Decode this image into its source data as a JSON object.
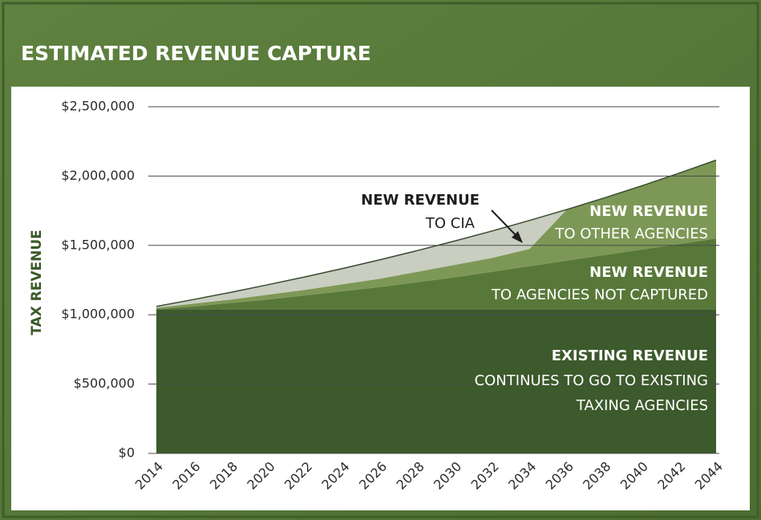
{
  "chart_data": {
    "type": "stacked-area",
    "title": "ESTIMATED REVENUE CAPTURE",
    "ylabel": "TAX REVENUE",
    "x": [
      2014,
      2016,
      2018,
      2020,
      2022,
      2024,
      2026,
      2028,
      2030,
      2032,
      2034,
      2036,
      2038,
      2040,
      2042,
      2044
    ],
    "xlim": [
      2014,
      2044
    ],
    "xticks": [
      2014,
      2016,
      2018,
      2020,
      2022,
      2024,
      2026,
      2028,
      2030,
      2032,
      2034,
      2036,
      2038,
      2040,
      2042,
      2044
    ],
    "ylim": [
      0,
      2500000
    ],
    "yticks": [
      {
        "value": 0,
        "label": "$0"
      },
      {
        "value": 500000,
        "label": "$500,000"
      },
      {
        "value": 1000000,
        "label": "$1,000,000"
      },
      {
        "value": 1500000,
        "label": "$1,500,000"
      },
      {
        "value": 2000000,
        "label": "$2,000,000"
      },
      {
        "value": 2500000,
        "label": "$2,500,000"
      }
    ],
    "grid": true,
    "series": [
      {
        "name": "EXISTING REVENUE",
        "lines": [
          "CONTINUES TO GO TO EXISTING",
          "TAXING AGENCIES"
        ],
        "color": "#3c5a2b",
        "values": [
          1040000,
          1040000,
          1040000,
          1040000,
          1040000,
          1040000,
          1040000,
          1040000,
          1040000,
          1040000,
          1040000,
          1040000,
          1040000,
          1040000,
          1040000,
          1040000
        ]
      },
      {
        "name": "NEW REVENUE",
        "lines": [
          "TO AGENCIES NOT CAPTURED"
        ],
        "color": "#587839",
        "values": [
          0,
          20000,
          45000,
          70000,
          100000,
          130000,
          160000,
          195000,
          230000,
          270000,
          310000,
          350000,
          390000,
          430000,
          470000,
          510000
        ]
      },
      {
        "name": "NEW REVENUE",
        "lines": [
          "TO OTHER AGENCIES"
        ],
        "color": "#7d9856",
        "values": [
          10000,
          20000,
          25000,
          35000,
          40000,
          50000,
          60000,
          75000,
          90000,
          100000,
          125000,
          369000,
          412000,
          459000,
          510000,
          565000
        ]
      },
      {
        "name": "NEW REVENUE",
        "lines": [
          "TO CIA"
        ],
        "color": "#c9cec1",
        "values": [
          10000,
          30000,
          52000,
          72000,
          94000,
          114000,
          137000,
          153000,
          172000,
          194000,
          205000,
          0,
          0,
          0,
          0,
          0
        ]
      }
    ]
  }
}
